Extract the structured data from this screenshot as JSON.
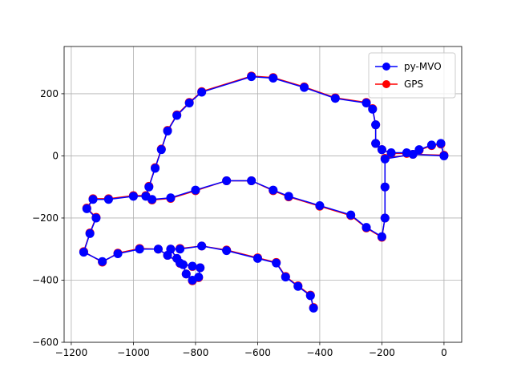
{
  "chart_data": {
    "type": "line",
    "x": [
      -420,
      -430,
      -470,
      -510,
      -540,
      -600,
      -700,
      -780,
      -850,
      -880,
      -860,
      -840,
      -830,
      -810,
      -790,
      -785,
      -810,
      -850,
      -890,
      -920,
      -980,
      -1050,
      -1100,
      -1160,
      -1140,
      -1120,
      -1150,
      -1130,
      -1080,
      -1000,
      -960,
      -950,
      -930,
      -910,
      -890,
      -860,
      -820,
      -780,
      -620,
      -550,
      -450,
      -350,
      -250,
      -230,
      -220,
      -220,
      -200,
      -170,
      -120,
      -80,
      -40,
      -10,
      0,
      -100,
      -190,
      -190,
      -190,
      -200,
      -250,
      -300,
      -400,
      -500,
      -550,
      -620,
      -700,
      -800,
      -880,
      -940
    ],
    "series": [
      {
        "name": "GPS",
        "color": "#ff0000",
        "values": [
          -488,
          -448,
          -418,
          -388,
          -343,
          -328,
          -303,
          -290,
          -298,
          -300,
          -330,
          -350,
          -380,
          -402,
          -392,
          -360,
          -356,
          -346,
          -320,
          -300,
          -298,
          -313,
          -342,
          -308,
          -248,
          -198,
          -168,
          -138,
          -138,
          -128,
          -128,
          -98,
          -38,
          22,
          82,
          132,
          172,
          207,
          257,
          252,
          222,
          187,
          172,
          152,
          100,
          40,
          20,
          8,
          8,
          18,
          33,
          38,
          2,
          5,
          -8,
          -100,
          -200,
          -262,
          -232,
          -192,
          -162,
          -132,
          -112,
          -80,
          -80,
          -112,
          -137,
          -142
        ]
      },
      {
        "name": "py-MVO",
        "color": "#0000ff",
        "values": [
          -490,
          -450,
          -420,
          -390,
          -345,
          -330,
          -305,
          -290,
          -300,
          -300,
          -330,
          -350,
          -380,
          -400,
          -390,
          -360,
          -355,
          -345,
          -320,
          -300,
          -300,
          -315,
          -340,
          -310,
          -250,
          -200,
          -170,
          -140,
          -140,
          -130,
          -130,
          -100,
          -40,
          20,
          80,
          130,
          170,
          205,
          255,
          250,
          220,
          185,
          170,
          150,
          100,
          40,
          20,
          10,
          10,
          20,
          35,
          40,
          0,
          5,
          -10,
          -100,
          -200,
          -260,
          -230,
          -190,
          -160,
          -130,
          -110,
          -80,
          -80,
          -110,
          -135,
          -140
        ]
      }
    ],
    "xlim": [
      -1223,
      57
    ],
    "ylim": [
      -600,
      352
    ],
    "xticks": [
      {
        "value": -1200,
        "label": "−1200"
      },
      {
        "value": -1000,
        "label": "−1000"
      },
      {
        "value": -800,
        "label": "−800"
      },
      {
        "value": -600,
        "label": "−600"
      },
      {
        "value": -400,
        "label": "−400"
      },
      {
        "value": -200,
        "label": "−200"
      },
      0
    ],
    "yticks": [
      {
        "value": -600,
        "label": "−600"
      },
      {
        "value": -400,
        "label": "−400"
      },
      {
        "value": -200,
        "label": "−200"
      },
      0,
      200
    ],
    "grid": true,
    "legend": "upper right",
    "legend_order": [
      1,
      0
    ]
  }
}
